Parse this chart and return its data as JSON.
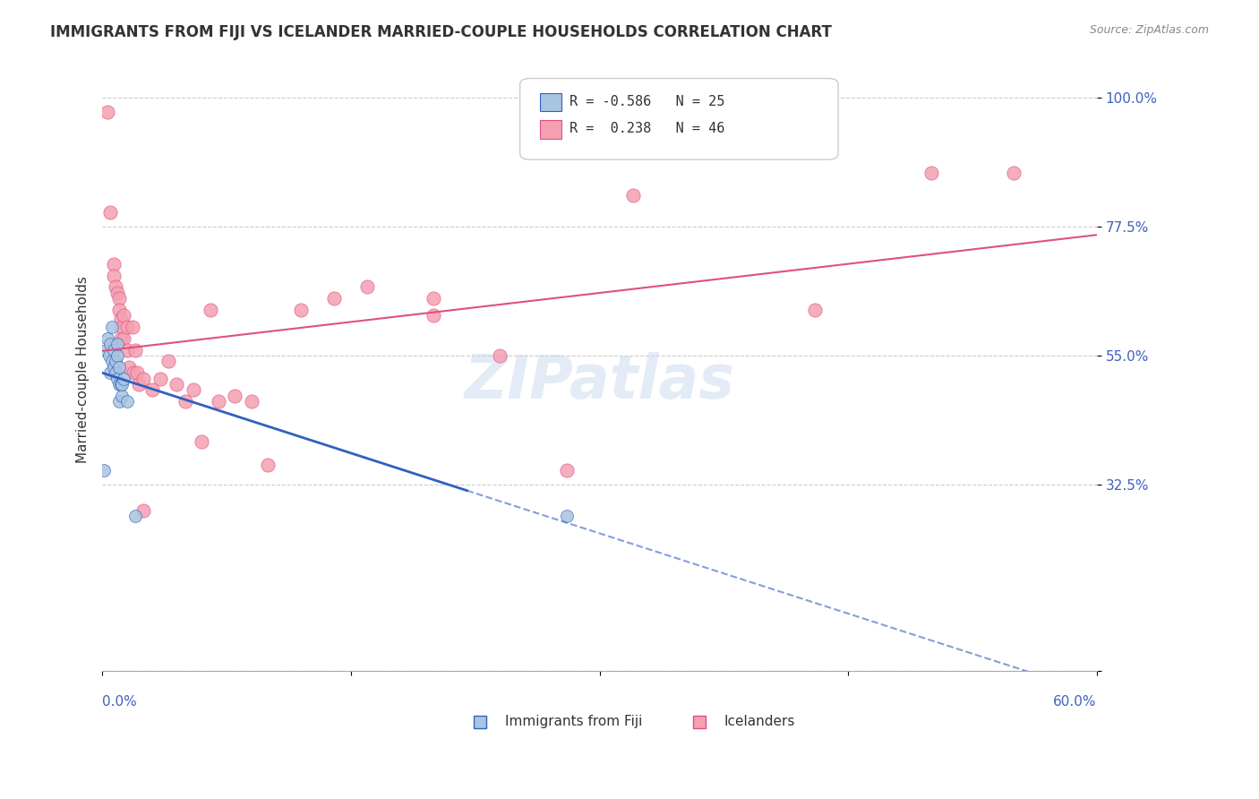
{
  "title": "IMMIGRANTS FROM FIJI VS ICELANDER MARRIED-COUPLE HOUSEHOLDS CORRELATION CHART",
  "source": "Source: ZipAtlas.com",
  "ylabel": "Married-couple Households",
  "y_ticks": [
    0.0,
    0.325,
    0.55,
    0.775,
    1.0
  ],
  "y_tick_labels": [
    "",
    "32.5%",
    "55.0%",
    "77.5%",
    "100.0%"
  ],
  "x_min": 0.0,
  "x_max": 0.6,
  "y_min": 0.0,
  "y_max": 1.05,
  "fiji_R": -0.586,
  "fiji_N": 25,
  "iceland_R": 0.238,
  "iceland_N": 46,
  "fiji_color": "#a8c4e0",
  "iceland_color": "#f4a0b0",
  "fiji_line_color": "#3060c0",
  "iceland_line_color": "#e05080",
  "legend_label_fiji": "Immigrants from Fiji",
  "legend_label_iceland": "Icelanders",
  "fiji_points_x": [
    0.002,
    0.003,
    0.004,
    0.005,
    0.005,
    0.006,
    0.006,
    0.007,
    0.007,
    0.008,
    0.008,
    0.009,
    0.009,
    0.009,
    0.01,
    0.01,
    0.01,
    0.011,
    0.012,
    0.012,
    0.013,
    0.015,
    0.02,
    0.28,
    0.001
  ],
  "fiji_points_y": [
    0.56,
    0.58,
    0.55,
    0.57,
    0.52,
    0.54,
    0.6,
    0.53,
    0.56,
    0.52,
    0.54,
    0.51,
    0.55,
    0.57,
    0.47,
    0.5,
    0.53,
    0.5,
    0.48,
    0.5,
    0.51,
    0.47,
    0.27,
    0.27,
    0.35
  ],
  "iceland_points_x": [
    0.003,
    0.005,
    0.007,
    0.007,
    0.008,
    0.009,
    0.01,
    0.01,
    0.011,
    0.011,
    0.012,
    0.013,
    0.013,
    0.015,
    0.015,
    0.016,
    0.018,
    0.019,
    0.02,
    0.021,
    0.022,
    0.025,
    0.03,
    0.035,
    0.04,
    0.045,
    0.05,
    0.055,
    0.06,
    0.065,
    0.07,
    0.08,
    0.09,
    0.1,
    0.12,
    0.14,
    0.16,
    0.2,
    0.24,
    0.28,
    0.32,
    0.43,
    0.5,
    0.2,
    0.55,
    0.025
  ],
  "iceland_points_y": [
    0.975,
    0.8,
    0.71,
    0.69,
    0.67,
    0.66,
    0.65,
    0.63,
    0.615,
    0.58,
    0.6,
    0.58,
    0.62,
    0.6,
    0.56,
    0.53,
    0.6,
    0.52,
    0.56,
    0.52,
    0.5,
    0.51,
    0.49,
    0.51,
    0.54,
    0.5,
    0.47,
    0.49,
    0.4,
    0.63,
    0.47,
    0.48,
    0.47,
    0.36,
    0.63,
    0.65,
    0.67,
    0.62,
    0.55,
    0.35,
    0.83,
    0.63,
    0.87,
    0.65,
    0.87,
    0.28
  ],
  "watermark_text": "ZIPatlas",
  "background_color": "#ffffff",
  "grid_color": "#cccccc"
}
